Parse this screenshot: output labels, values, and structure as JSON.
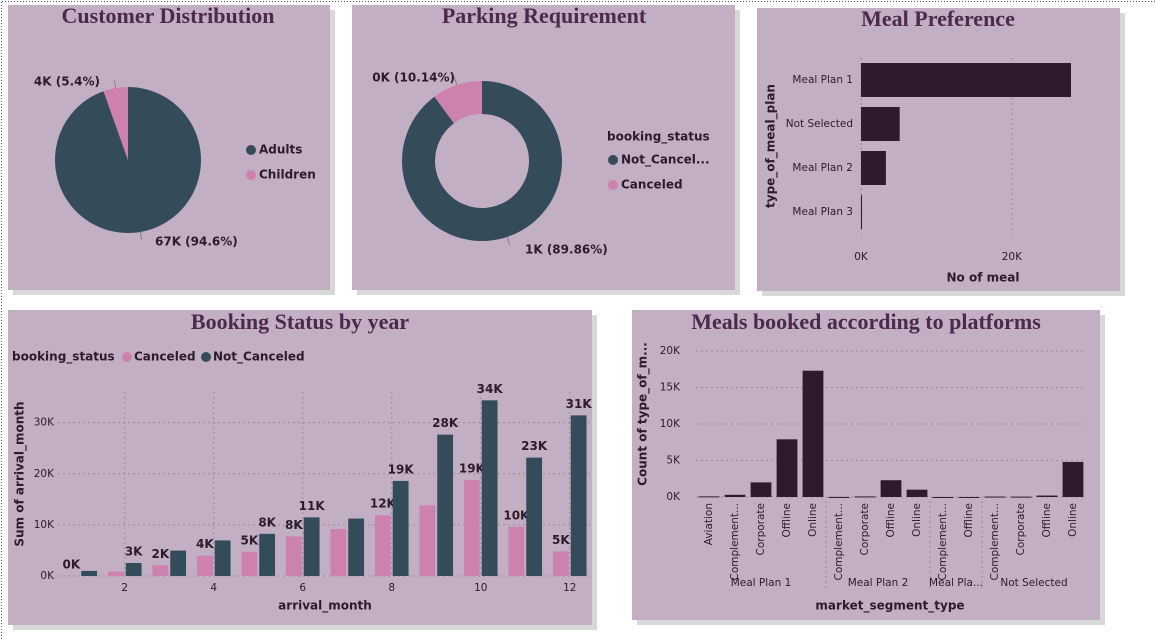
{
  "chart_data": [
    {
      "type": "pie",
      "title": "Customer Distribution",
      "categories": [
        "Adults",
        "Children"
      ],
      "values": [
        67000,
        3850
      ],
      "value_labels": [
        "67K (94.6%)",
        "4K (5.4%)"
      ],
      "colors": [
        "#344b5a",
        "#cc82ac"
      ]
    },
    {
      "type": "donut",
      "title": "Parking Requirement",
      "legend_title": "booking_status",
      "categories": [
        "Not_Cancel...",
        "Canceled"
      ],
      "values": [
        1072,
        121
      ],
      "value_labels": [
        "1K (89.86%)",
        "0K (10.14%)"
      ],
      "colors": [
        "#344b5a",
        "#cc82ac"
      ]
    },
    {
      "type": "hbar",
      "title": "Meal Preference",
      "x_label": "No of meal",
      "y_label": "type_of_meal_plan",
      "categories": [
        "Meal Plan 1",
        "Not Selected",
        "Meal Plan 2",
        "Meal Plan 3"
      ],
      "values": [
        27835,
        5130,
        3305,
        5
      ],
      "value_labels": [
        "28K",
        "5K",
        "3K",
        null
      ],
      "color": "#2e1a2f",
      "xlim": [
        0,
        28500
      ],
      "xticks": [
        {
          "value": 0,
          "label": "0K"
        },
        {
          "value": 20000,
          "label": "20K"
        }
      ],
      "grid": true
    },
    {
      "type": "grouped",
      "title": "Booking Status by year",
      "legend_title": "booking_status",
      "x_label": "arrival_month",
      "y_label": "Sum of arrival_month",
      "x": [
        1,
        2,
        3,
        4,
        5,
        6,
        7,
        8,
        9,
        10,
        11,
        12
      ],
      "xlim": [
        0.5,
        12.5
      ],
      "xticks": [
        2,
        4,
        6,
        8,
        10,
        12
      ],
      "ylim": [
        0,
        36000
      ],
      "yticks": [
        {
          "value": 0,
          "label": "0K"
        },
        {
          "value": 10000,
          "label": "10K"
        },
        {
          "value": 20000,
          "label": "20K"
        },
        {
          "value": 30000,
          "label": "30K"
        }
      ],
      "grid": true,
      "series": [
        {
          "name": "Canceled",
          "color": "#cc82ac",
          "values": [
            24,
            860,
            2100,
            3980,
            4740,
            7746,
            9198,
            11904,
            13842,
            18800,
            9625,
            4824
          ],
          "value_labels": [
            "0K",
            null,
            "2K",
            "4K",
            "5K",
            "8K",
            null,
            "12K",
            null,
            "19K",
            "10K",
            "5K"
          ]
        },
        {
          "name": "Not_Canceled",
          "color": "#344b5a",
          "values": [
            990,
            2548,
            4974,
            6964,
            8250,
            11472,
            11242,
            18600,
            27657,
            34370,
            23155,
            31428
          ],
          "value_labels": [
            null,
            "3K",
            null,
            null,
            "8K",
            "11K",
            null,
            "19K",
            "28K",
            "34K",
            "23K",
            "31K"
          ]
        }
      ]
    },
    {
      "type": "nested",
      "title": "Meals booked according to platforms",
      "x_label": "market_segment_type",
      "y_label": "Count of type_of_m...",
      "color": "#2e1a2f",
      "ylim": [
        0,
        20000
      ],
      "yticks": [
        {
          "value": 0,
          "label": "0K"
        },
        {
          "value": 5000,
          "label": "5K"
        },
        {
          "value": 10000,
          "label": "10K"
        },
        {
          "value": 15000,
          "label": "15K"
        },
        {
          "value": 20000,
          "label": "20K"
        }
      ],
      "grid": true,
      "groups": [
        {
          "label": "Meal Plan 1",
          "categories": [
            "Aviation",
            "Complement...",
            "Corporate",
            "Offline",
            "Online"
          ],
          "values": [
            88,
            300,
            2000,
            7900,
            17300
          ],
          "value_labels": [
            null,
            null,
            null,
            "...",
            "..."
          ]
        },
        {
          "label": "Meal Plan 2",
          "categories": [
            "Complement...",
            "Corporate",
            "Offline",
            "Online"
          ],
          "values": [
            10,
            80,
            2300,
            1000
          ]
        },
        {
          "label": "Meal Pla...",
          "categories": [
            "Complement...",
            "Offline"
          ],
          "values": [
            1,
            4
          ]
        },
        {
          "label": "Not Selected",
          "categories": [
            "Complement...",
            "Corporate",
            "Offline",
            "Online"
          ],
          "values": [
            60,
            50,
            200,
            4800
          ],
          "value_labels": [
            null,
            null,
            null,
            "..."
          ]
        }
      ]
    }
  ]
}
